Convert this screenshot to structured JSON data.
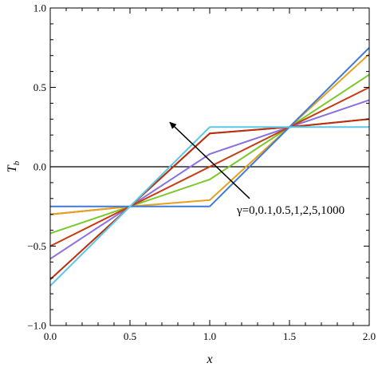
{
  "chart_data": {
    "type": "line",
    "xlabel": "x",
    "ylabel": "T",
    "ylabel_subscript": "b",
    "xlim": [
      0.0,
      2.0
    ],
    "ylim": [
      -1.0,
      1.0
    ],
    "xticks": [
      "0.0",
      "0.5",
      "1.0",
      "1.5",
      "2.0"
    ],
    "yticks": [
      "-1.0",
      "-0.5",
      "0.0",
      "0.5",
      "1.0"
    ],
    "grid": false,
    "annotation": "γ=0,0.1,0.5,1,2,5,1000",
    "annotation_arrow": {
      "from": [
        1.25,
        -0.2
      ],
      "to": [
        0.75,
        0.28
      ]
    },
    "reference_line": {
      "y": 0.0,
      "color": "#000000"
    },
    "series": [
      {
        "color": "#c85a10",
        "x": [
          0,
          0.5,
          1.0,
          1.5,
          2.0
        ],
        "y": [
          -0.3,
          -0.25,
          0.21,
          0.25,
          0.3
        ]
      },
      {
        "color": "#8a70e0",
        "x": [
          0,
          0.5,
          1.0,
          1.5,
          2.0
        ],
        "y": [
          -0.58,
          -0.25,
          0.08,
          0.25,
          0.42
        ]
      },
      {
        "color": "#7cc82a",
        "x": [
          0,
          0.5,
          1.0,
          1.5,
          2.0
        ],
        "y": [
          -0.42,
          -0.25,
          -0.08,
          0.25,
          0.58
        ]
      },
      {
        "color": "#e8a020",
        "x": [
          0,
          0.5,
          1.0,
          1.5,
          2.0
        ],
        "y": [
          -0.3,
          -0.25,
          -0.21,
          0.25,
          0.71
        ]
      },
      {
        "color": "#c83a10",
        "x": [
          0,
          0.5,
          1.0,
          1.5,
          2.0
        ],
        "y": [
          -0.5,
          -0.25,
          0.0,
          0.25,
          0.5
        ]
      },
      {
        "color": "#b83010",
        "x": [
          0,
          0.5,
          1.0,
          1.5,
          2.0
        ],
        "y": [
          -0.71,
          -0.25,
          0.21,
          0.25,
          0.3
        ]
      },
      {
        "color": "#3f7bd9",
        "x": [
          0,
          0.5,
          1.0,
          1.5,
          2.0
        ],
        "y": [
          -0.25,
          -0.25,
          -0.25,
          0.25,
          0.75
        ]
      },
      {
        "color": "#5bc8e8",
        "x": [
          0,
          0.5,
          1.0,
          1.5,
          2.0
        ],
        "y": [
          -0.75,
          -0.25,
          0.25,
          0.25,
          0.25
        ]
      }
    ]
  }
}
